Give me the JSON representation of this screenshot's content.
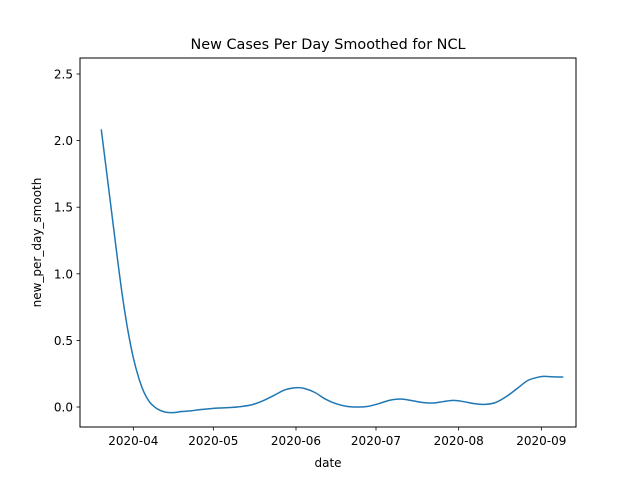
{
  "chart_data": {
    "type": "line",
    "title": "New Cases Per Day Smoothed for NCL",
    "xlabel": "date",
    "ylabel": "new_per_day_smooth",
    "x_axis_type": "date",
    "xlim": [
      "2020-03-12",
      "2020-09-14"
    ],
    "ylim": [
      -0.15,
      2.62
    ],
    "x_ticks": [
      "2020-04-01",
      "2020-05-01",
      "2020-06-01",
      "2020-07-01",
      "2020-08-01",
      "2020-09-01"
    ],
    "x_tick_labels": [
      "2020-04",
      "2020-05",
      "2020-06",
      "2020-07",
      "2020-08",
      "2020-09"
    ],
    "y_ticks": [
      0.0,
      0.5,
      1.0,
      1.5,
      2.0,
      2.5
    ],
    "y_tick_labels": [
      "0.0",
      "0.5",
      "1.0",
      "1.5",
      "2.0",
      "2.5"
    ],
    "grid": false,
    "series": [
      {
        "color": "#1f77b4",
        "x": [
          "2020-03-20",
          "2020-03-22",
          "2020-03-24",
          "2020-03-26",
          "2020-03-28",
          "2020-03-30",
          "2020-04-01",
          "2020-04-03",
          "2020-04-05",
          "2020-04-07",
          "2020-04-09",
          "2020-04-11",
          "2020-04-13",
          "2020-04-15",
          "2020-04-17",
          "2020-04-19",
          "2020-04-22",
          "2020-04-26",
          "2020-04-30",
          "2020-05-04",
          "2020-05-08",
          "2020-05-12",
          "2020-05-16",
          "2020-05-20",
          "2020-05-24",
          "2020-05-28",
          "2020-06-01",
          "2020-06-04",
          "2020-06-08",
          "2020-06-12",
          "2020-06-16",
          "2020-06-20",
          "2020-06-24",
          "2020-06-28",
          "2020-07-02",
          "2020-07-06",
          "2020-07-10",
          "2020-07-14",
          "2020-07-18",
          "2020-07-22",
          "2020-07-26",
          "2020-07-30",
          "2020-08-03",
          "2020-08-07",
          "2020-08-11",
          "2020-08-15",
          "2020-08-19",
          "2020-08-23",
          "2020-08-27",
          "2020-08-31",
          "2020-09-02",
          "2020-09-04",
          "2020-09-06",
          "2020-09-09"
        ],
        "y": [
          2.08,
          1.76,
          1.44,
          1.12,
          0.82,
          0.57,
          0.37,
          0.22,
          0.11,
          0.04,
          0.0,
          -0.025,
          -0.038,
          -0.042,
          -0.04,
          -0.034,
          -0.03,
          -0.02,
          -0.012,
          -0.007,
          -0.003,
          0.005,
          0.02,
          0.05,
          0.09,
          0.13,
          0.145,
          0.14,
          0.11,
          0.06,
          0.025,
          0.005,
          0.0,
          0.005,
          0.025,
          0.05,
          0.06,
          0.05,
          0.035,
          0.03,
          0.04,
          0.05,
          0.04,
          0.025,
          0.02,
          0.035,
          0.08,
          0.14,
          0.2,
          0.225,
          0.23,
          0.228,
          0.226,
          0.225
        ]
      }
    ]
  }
}
